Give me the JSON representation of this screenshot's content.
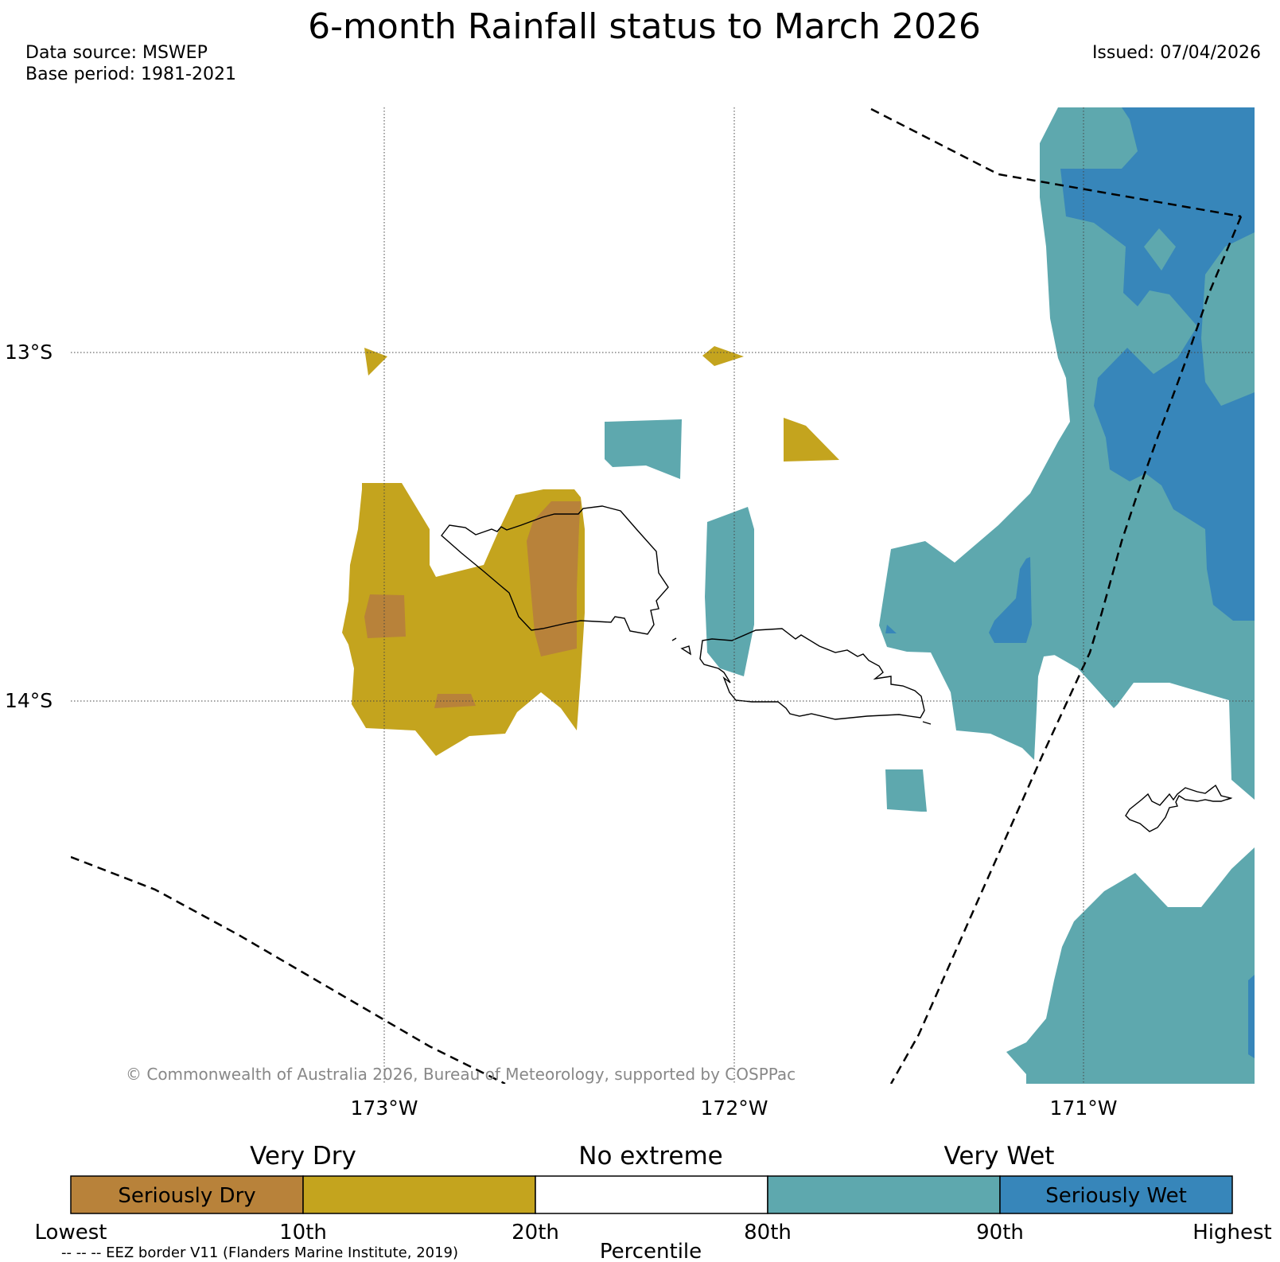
{
  "header": {
    "title": "6-month Rainfall status to March 2026",
    "data_source": "Data source: MSWEP",
    "base_period": "Base period: 1981-2021",
    "issued": "Issued: 07/04/2026"
  },
  "map": {
    "lat_labels": [
      "13°S",
      "14°S"
    ],
    "lon_labels": [
      "173°W",
      "172°W",
      "171°W"
    ],
    "copyright": "© Commonwealth of Australia 2026, Bureau of Meteorology, supported by COSPPac"
  },
  "legend": {
    "groups": [
      "Very Dry",
      "No extreme",
      "Very Wet"
    ],
    "boxes": [
      {
        "label": "Seriously Dry",
        "color": "#b8823a"
      },
      {
        "label": "",
        "color": "#c4a41e"
      },
      {
        "label": "",
        "color": "#ffffff"
      },
      {
        "label": "",
        "color": "#5ea8ae"
      },
      {
        "label": "Seriously Wet",
        "color": "#3786ba"
      }
    ],
    "ticks": [
      "Lowest",
      "10th",
      "20th",
      "80th",
      "90th",
      "Highest"
    ],
    "axis_label": "Percentile",
    "eez_note": "-- -- -- EEZ border V11 (Flanders Marine Institute, 2019)"
  },
  "colors": {
    "seriously_dry": "#b8823a",
    "very_dry": "#c4a41e",
    "very_wet": "#5ea8ae",
    "seriously_wet": "#3786ba",
    "copyright_text": "#888888"
  }
}
